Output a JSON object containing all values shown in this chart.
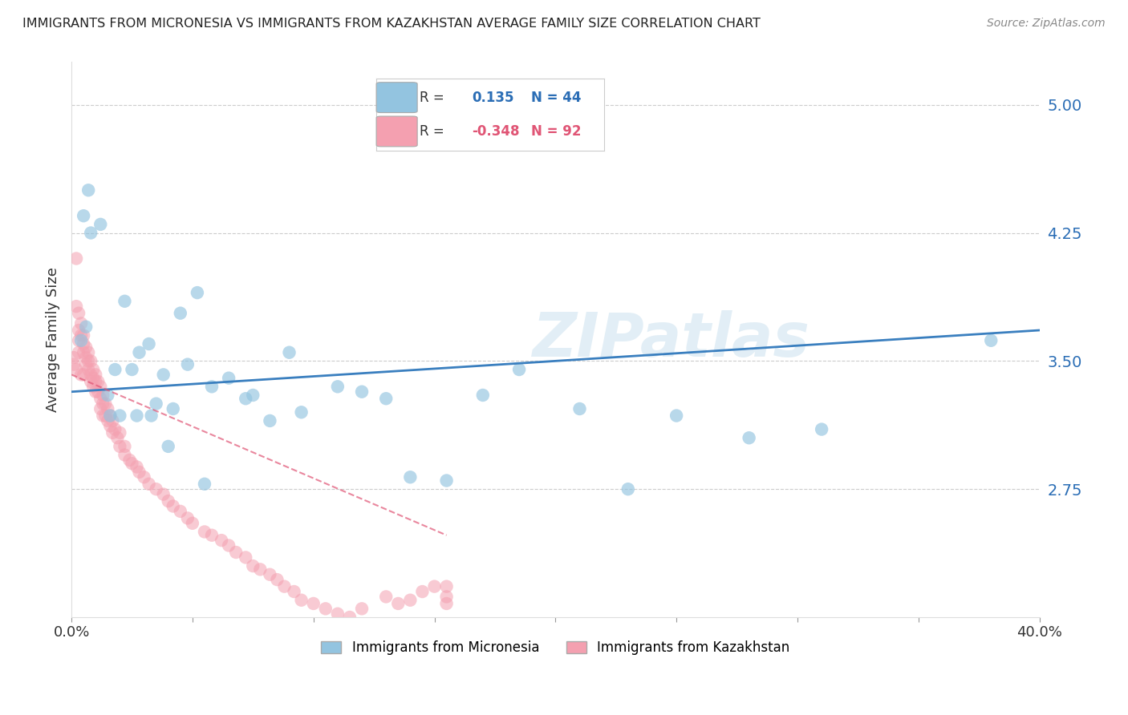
{
  "title": "IMMIGRANTS FROM MICRONESIA VS IMMIGRANTS FROM KAZAKHSTAN AVERAGE FAMILY SIZE CORRELATION CHART",
  "source": "Source: ZipAtlas.com",
  "ylabel": "Average Family Size",
  "yticks": [
    2.75,
    3.5,
    4.25,
    5.0
  ],
  "ylim": [
    2.0,
    5.25
  ],
  "xlim": [
    0.0,
    0.4
  ],
  "xticks": [
    0.0,
    0.05,
    0.1,
    0.15,
    0.2,
    0.25,
    0.3,
    0.35,
    0.4
  ],
  "xtick_labels": [
    "0.0%",
    "",
    "",
    "",
    "",
    "",
    "",
    "",
    "40.0%"
  ],
  "blue_R": 0.135,
  "blue_N": 44,
  "pink_R": -0.348,
  "pink_N": 92,
  "blue_label": "Immigrants from Micronesia",
  "pink_label": "Immigrants from Kazakhstan",
  "blue_color": "#93c4e0",
  "pink_color": "#f4a0b0",
  "blue_line_color": "#3a7fbf",
  "pink_line_color": "#e05575",
  "watermark": "ZIPatlas",
  "blue_trend_x": [
    0.0,
    0.4
  ],
  "blue_trend_y": [
    3.32,
    3.68
  ],
  "pink_trend_x": [
    0.0,
    0.155
  ],
  "pink_trend_y": [
    3.42,
    2.48
  ],
  "blue_scatter_x": [
    0.004,
    0.005,
    0.007,
    0.012,
    0.015,
    0.018,
    0.022,
    0.025,
    0.028,
    0.032,
    0.035,
    0.038,
    0.042,
    0.045,
    0.048,
    0.052,
    0.058,
    0.065,
    0.072,
    0.082,
    0.095,
    0.11,
    0.13,
    0.14,
    0.155,
    0.17,
    0.185,
    0.21,
    0.23,
    0.25,
    0.28,
    0.31,
    0.38,
    0.006,
    0.008,
    0.016,
    0.02,
    0.027,
    0.033,
    0.04,
    0.055,
    0.075,
    0.09,
    0.12
  ],
  "blue_scatter_y": [
    3.62,
    4.35,
    4.5,
    4.3,
    3.3,
    3.45,
    3.85,
    3.45,
    3.55,
    3.6,
    3.25,
    3.42,
    3.22,
    3.78,
    3.48,
    3.9,
    3.35,
    3.4,
    3.28,
    3.15,
    3.2,
    3.35,
    3.28,
    2.82,
    2.8,
    3.3,
    3.45,
    3.22,
    2.75,
    3.18,
    3.05,
    3.1,
    3.62,
    3.7,
    4.25,
    3.18,
    3.18,
    3.18,
    3.18,
    3.0,
    2.78,
    3.3,
    3.55,
    3.32
  ],
  "pink_scatter_x": [
    0.001,
    0.001,
    0.002,
    0.002,
    0.002,
    0.003,
    0.003,
    0.003,
    0.003,
    0.004,
    0.004,
    0.004,
    0.005,
    0.005,
    0.005,
    0.005,
    0.006,
    0.006,
    0.006,
    0.007,
    0.007,
    0.007,
    0.008,
    0.008,
    0.008,
    0.009,
    0.009,
    0.009,
    0.01,
    0.01,
    0.01,
    0.011,
    0.011,
    0.012,
    0.012,
    0.012,
    0.013,
    0.013,
    0.013,
    0.014,
    0.014,
    0.015,
    0.015,
    0.016,
    0.016,
    0.017,
    0.017,
    0.018,
    0.019,
    0.02,
    0.02,
    0.022,
    0.022,
    0.024,
    0.025,
    0.027,
    0.028,
    0.03,
    0.032,
    0.035,
    0.038,
    0.04,
    0.042,
    0.045,
    0.048,
    0.05,
    0.055,
    0.058,
    0.062,
    0.065,
    0.068,
    0.072,
    0.075,
    0.078,
    0.082,
    0.085,
    0.088,
    0.092,
    0.095,
    0.1,
    0.105,
    0.11,
    0.115,
    0.12,
    0.13,
    0.135,
    0.14,
    0.145,
    0.15,
    0.155,
    0.155,
    0.155
  ],
  "pink_scatter_y": [
    3.52,
    3.48,
    4.1,
    3.82,
    3.45,
    3.78,
    3.68,
    3.62,
    3.55,
    3.72,
    3.65,
    3.42,
    3.65,
    3.6,
    3.55,
    3.42,
    3.58,
    3.52,
    3.48,
    3.55,
    3.5,
    3.45,
    3.5,
    3.42,
    3.38,
    3.45,
    3.4,
    3.35,
    3.42,
    3.38,
    3.32,
    3.38,
    3.32,
    3.35,
    3.28,
    3.22,
    3.3,
    3.25,
    3.18,
    3.25,
    3.18,
    3.22,
    3.15,
    3.18,
    3.12,
    3.15,
    3.08,
    3.1,
    3.05,
    3.0,
    3.08,
    3.0,
    2.95,
    2.92,
    2.9,
    2.88,
    2.85,
    2.82,
    2.78,
    2.75,
    2.72,
    2.68,
    2.65,
    2.62,
    2.58,
    2.55,
    2.5,
    2.48,
    2.45,
    2.42,
    2.38,
    2.35,
    2.3,
    2.28,
    2.25,
    2.22,
    2.18,
    2.15,
    2.1,
    2.08,
    2.05,
    2.02,
    2.0,
    2.05,
    2.12,
    2.08,
    2.1,
    2.15,
    2.18,
    2.08,
    2.12,
    2.18
  ]
}
